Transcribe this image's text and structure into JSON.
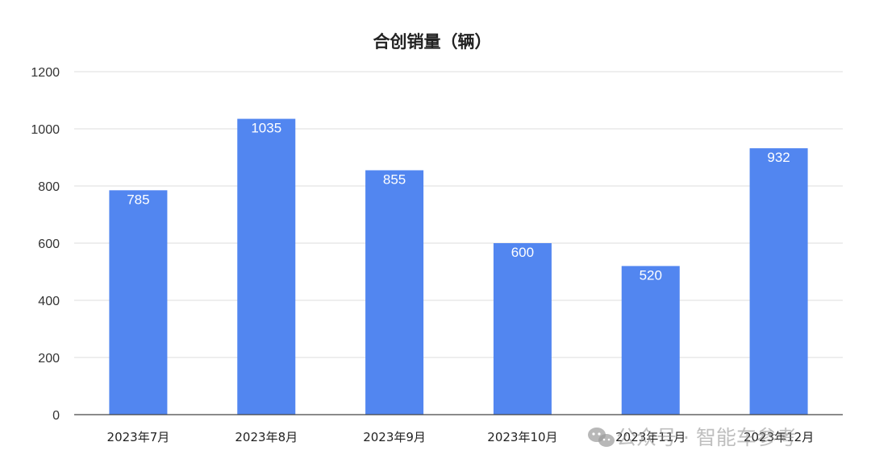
{
  "chart_data": {
    "type": "bar",
    "title": "合创销量（辆）",
    "categories": [
      "2023年7月",
      "2023年8月",
      "2023年9月",
      "2023年10月",
      "2023年11月",
      "2023年12月"
    ],
    "values": [
      785,
      1035,
      855,
      600,
      520,
      932
    ],
    "yticks": [
      "0",
      "200",
      "400",
      "600",
      "800",
      "1000",
      "1200"
    ],
    "ylim": [
      0,
      1200
    ],
    "grid": true,
    "data_labels": true,
    "bar_color": "#5286F0"
  },
  "watermark": {
    "text": "公众号 · 智能车参考",
    "icon": "wechat-icon"
  }
}
